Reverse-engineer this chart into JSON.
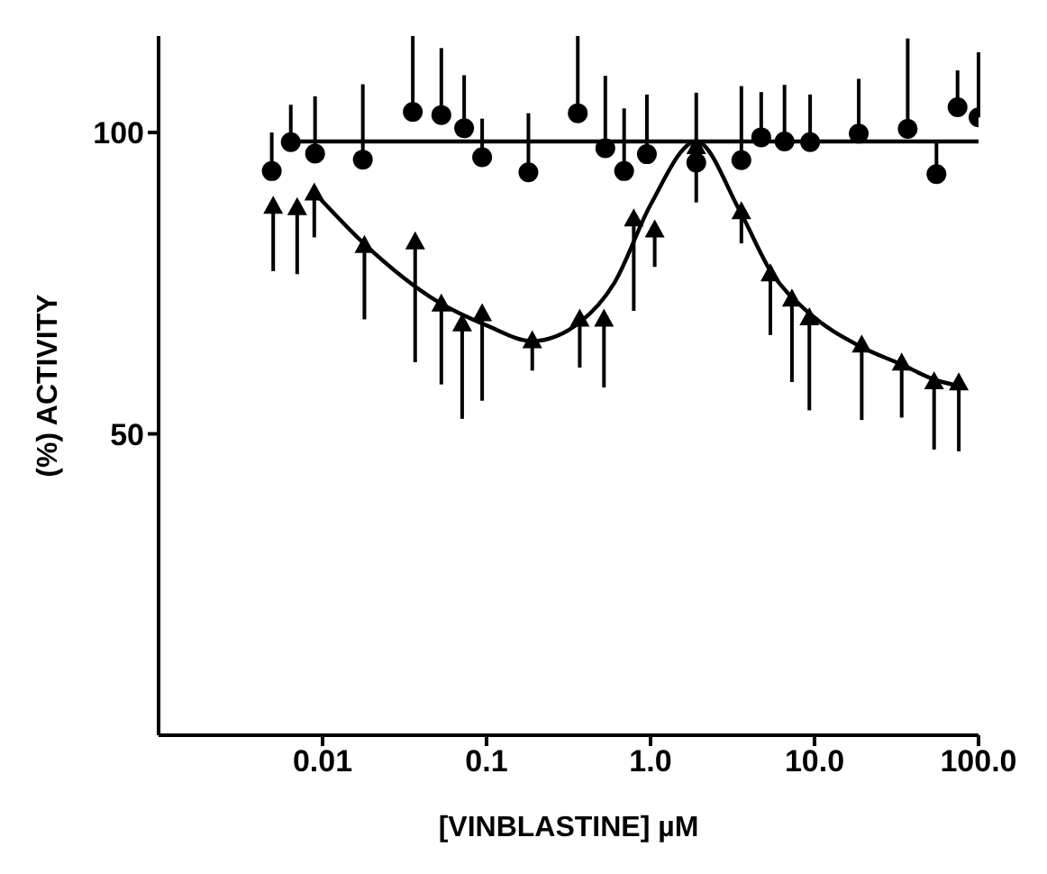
{
  "chart_data": {
    "type": "scatter",
    "xlabel": "[VINBLASTINE] µM",
    "ylabel": "(%) ACTIVITY",
    "log": "x",
    "xlim": [
      0.001,
      100
    ],
    "xticks": [
      0.01,
      0.1,
      {
        "value": 1,
        "label": "1.0"
      },
      {
        "value": 10,
        "label": "10.0"
      },
      {
        "value": 100,
        "label": "100.0"
      }
    ],
    "ylim": [
      0,
      116
    ],
    "yticks": [
      50,
      100
    ],
    "grid": false,
    "legend": false,
    "series": [
      {
        "marker": "circle",
        "color": "#000000",
        "x": [
          0.0049,
          0.0064,
          0.009,
          0.0176,
          0.0355,
          0.053,
          0.073,
          0.094,
          0.18,
          0.36,
          0.53,
          0.69,
          0.95,
          1.9,
          3.58,
          4.73,
          6.56,
          9.4,
          18.6,
          37,
          55.4,
          74.5,
          100
        ],
        "values": [
          93.6,
          98.4,
          96.5,
          95.5,
          103.4,
          102.9,
          100.7,
          95.9,
          93.4,
          103.2,
          97.4,
          93.6,
          96.4,
          95,
          95.4,
          99.2,
          98.5,
          98.4,
          99.8,
          100.6,
          93.1,
          104.2,
          102.5
        ],
        "errors": [
          [
            93.6,
            100
          ],
          [
            98.4,
            104.6
          ],
          [
            96.5,
            106
          ],
          [
            95.5,
            108
          ],
          [
            103.4,
            116
          ],
          [
            102.9,
            114
          ],
          [
            100.7,
            109.5
          ],
          [
            95.9,
            102.3
          ],
          [
            93.4,
            103.2
          ],
          [
            103.2,
            116
          ],
          [
            97.4,
            109.4
          ],
          [
            93.6,
            104
          ],
          [
            96.4,
            106.3
          ],
          [
            88.4,
            106.6
          ],
          [
            95.4,
            107.7
          ],
          [
            99.2,
            106.7
          ],
          [
            98.5,
            107.9
          ],
          [
            98.4,
            106.3
          ],
          [
            99.8,
            108.9
          ],
          [
            100.6,
            115.6
          ],
          [
            93.1,
            98.3
          ],
          [
            104.2,
            110.3
          ],
          [
            102.5,
            113.3
          ]
        ]
      },
      {
        "marker": "triangle",
        "color": "#000000",
        "x": [
          0.005,
          0.007,
          0.0089,
          0.018,
          0.0367,
          0.053,
          0.071,
          0.094,
          0.19,
          0.37,
          0.52,
          0.79,
          1.06,
          1.9,
          3.58,
          5.38,
          7.28,
          9.3,
          19.4,
          34,
          53.6,
          75.8
        ],
        "values": [
          87.7,
          87.5,
          89.9,
          81.2,
          81.8,
          71.5,
          68.2,
          69.9,
          65.4,
          69,
          69,
          85.6,
          83.8,
          97.6,
          86.8,
          76.5,
          72.3,
          69.2,
          64.7,
          61.7,
          58.6,
          58.4
        ],
        "errors": [
          [
            77,
            87.7
          ],
          [
            76.5,
            87.5
          ],
          [
            82.6,
            89.9
          ],
          [
            69,
            81.2
          ],
          [
            61.9,
            81.8
          ],
          [
            58.2,
            71.5
          ],
          [
            52.5,
            68.2
          ],
          [
            55.5,
            69.9
          ],
          [
            60.5,
            65.4
          ],
          [
            61,
            69
          ],
          [
            57.7,
            69
          ],
          [
            70.4,
            85.6
          ],
          [
            77.7,
            83.8
          ],
          null,
          [
            81.6,
            86.8
          ],
          [
            66.4,
            76.5
          ],
          [
            58.6,
            72.3
          ],
          [
            53.9,
            69.2
          ],
          [
            52.3,
            64.7
          ],
          [
            52.7,
            61.7
          ],
          [
            47.4,
            58.6
          ],
          [
            47.1,
            58.4
          ]
        ]
      },
      {
        "type": "line",
        "marker": "none",
        "line_style": "solid",
        "color": "#000000",
        "x": [
          0.0064,
          100
        ],
        "values": [
          98.5,
          98.5
        ]
      },
      {
        "type": "line",
        "marker": "none",
        "line_style": "solid",
        "color": "#000000",
        "x": [
          0.009,
          0.018,
          0.05,
          0.1,
          0.19,
          0.37,
          0.6,
          1.0,
          1.9,
          3.5,
          5.4,
          9.3,
          19,
          34,
          54,
          75
        ],
        "values": [
          89.9,
          81.5,
          72,
          68,
          65.4,
          68.5,
          75,
          88,
          98.5,
          87,
          77,
          70,
          64.5,
          61.5,
          59,
          58
        ]
      }
    ]
  }
}
